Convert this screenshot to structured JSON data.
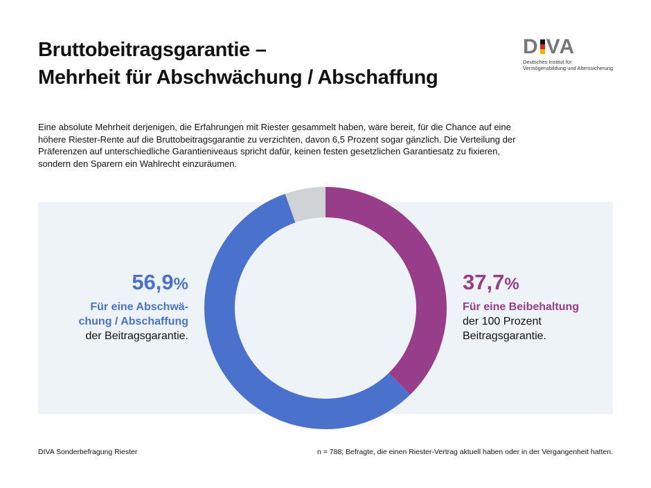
{
  "title": {
    "line1": "Bruttobeitragsgarantie –",
    "line2": "Mehrheit für Abschwächung / Abschaffung"
  },
  "logo": {
    "text_pre": "D",
    "text_post": "VA",
    "subtitle_line1": "Deutsches Institut für",
    "subtitle_line2": "Vermögensbildung und Alterssicherung"
  },
  "intro": "Eine absolute Mehrheit derjenigen, die Erfahrungen mit Riester gesammelt haben, wäre bereit, für die Chance auf eine höhere Riester-Rente auf die Bruttobeitragsgarantie zu verzichten, davon 6,5 Prozent sogar gänzlich. Die Verteilung der Präferenzen auf unterschiedliche Garantieniveaus spricht dafür, keinen festen gesetzlichen Garantiesatz zu fixieren, sondern den Sparern ein Wahlrecht einzuräumen.",
  "chart_data": {
    "type": "pie",
    "donut": true,
    "slices": [
      {
        "label": "Für eine Beibehaltung der 100 Prozent Beitragsgarantie.",
        "value": 37.7,
        "color": "#973d8a"
      },
      {
        "label": "Für eine Abschwächung / Abschaffung der Beitragsgarantie.",
        "value": 56.9,
        "color": "#4a72cc"
      },
      {
        "label": "",
        "value": 5.4,
        "color": "#d0d3d6"
      }
    ]
  },
  "labels": {
    "left": {
      "pct": "56,9",
      "unit": "%",
      "line1": "Für eine Abschwä-",
      "line2": "chung / Abschaffung",
      "line3": "der Beitragsgarantie."
    },
    "right": {
      "pct": "37,7",
      "unit": "%",
      "line1": "Für eine Beibehaltung",
      "line2": "der 100 Prozent",
      "line3": "Beitragsgarantie."
    }
  },
  "footer": {
    "source": "DIVA Sonderbefragung Riester",
    "note": "n = 788; Befragte, die einen Riester-Vertrag aktuell haben oder in der Vergangenheit hatten."
  }
}
